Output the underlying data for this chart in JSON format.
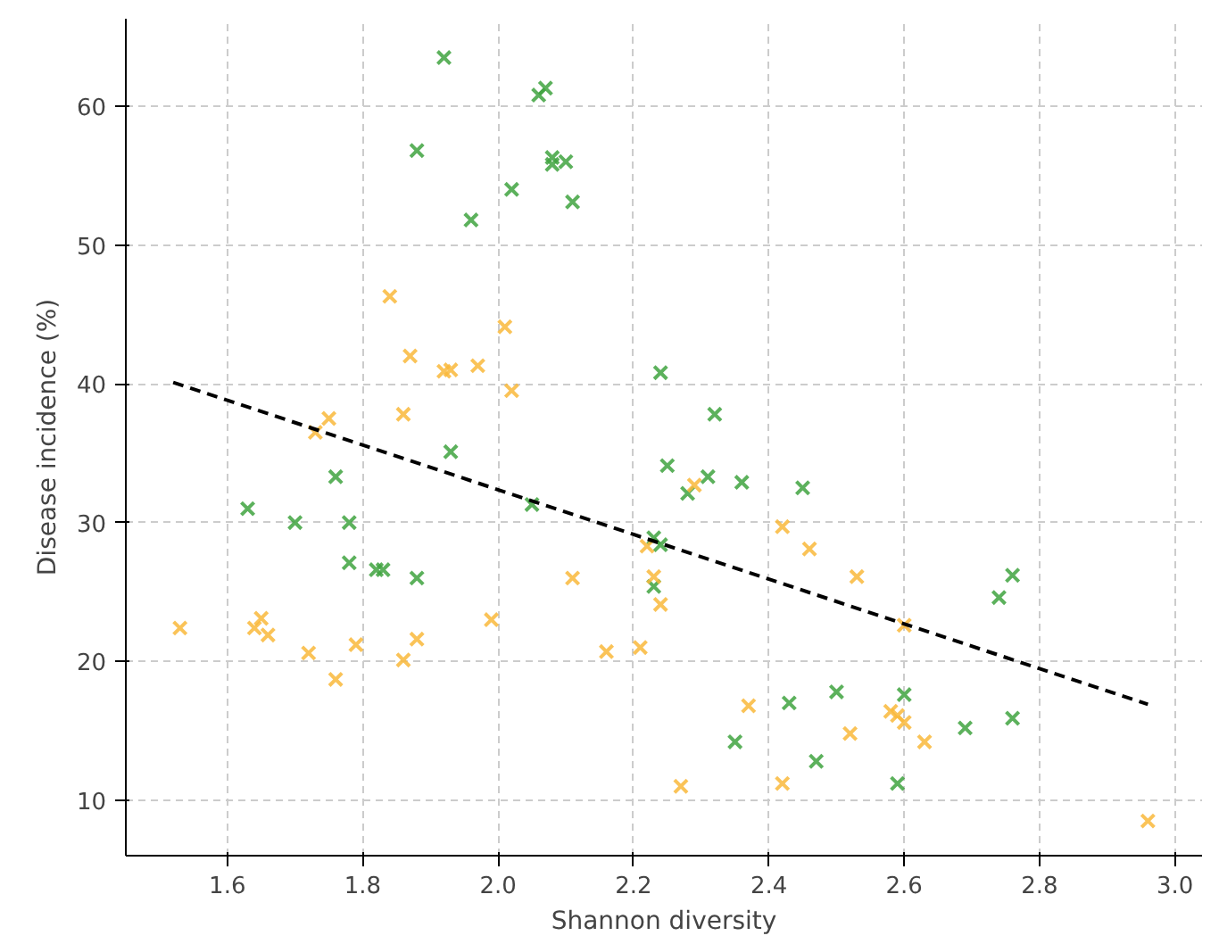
{
  "chart_data": {
    "type": "scatter",
    "xlabel": "Shannon diversity",
    "ylabel": "Disease incidence (%)",
    "xlim": [
      1.45,
      3.04
    ],
    "ylim": [
      6,
      66.3
    ],
    "xticks": [
      {
        "value": 1.6,
        "label": "1.6"
      },
      {
        "value": 1.8,
        "label": "1.8"
      },
      {
        "value": 2.0,
        "label": "2.0"
      },
      {
        "value": 2.2,
        "label": "2.2"
      },
      {
        "value": 2.4,
        "label": "2.4"
      },
      {
        "value": 2.6,
        "label": "2.6"
      },
      {
        "value": 2.8,
        "label": "2.8"
      },
      {
        "value": 3.0,
        "label": "3.0"
      }
    ],
    "yticks": [
      10,
      20,
      30,
      40,
      50,
      60
    ],
    "grid": true,
    "series": [
      {
        "marker": "cross",
        "color": "#3fa33f",
        "x": [
          1.92,
          2.06,
          2.07,
          1.88,
          2.08,
          2.08,
          2.1,
          2.11,
          2.02,
          1.96,
          2.24,
          1.93,
          2.32,
          2.25,
          2.31,
          2.28,
          2.36,
          2.45,
          1.76,
          1.63,
          1.7,
          1.78,
          2.05,
          1.78,
          1.82,
          1.83,
          1.88,
          2.23,
          2.24,
          2.23,
          2.74,
          2.76,
          2.6,
          2.5,
          2.43,
          2.35,
          2.47,
          2.59,
          2.69,
          2.76
        ],
        "values": [
          63.5,
          60.8,
          61.3,
          56.8,
          56.3,
          55.8,
          56.0,
          53.1,
          54.0,
          51.8,
          40.8,
          35.1,
          37.8,
          34.1,
          33.3,
          32.1,
          32.9,
          32.5,
          33.3,
          31.0,
          30.0,
          30.0,
          31.3,
          27.1,
          26.6,
          26.6,
          26.0,
          28.9,
          28.4,
          25.4,
          24.6,
          26.2,
          17.6,
          17.8,
          17.0,
          14.2,
          12.8,
          11.2,
          15.2,
          15.9
        ]
      },
      {
        "marker": "cross",
        "color": "#f9b93b",
        "x": [
          1.84,
          2.01,
          1.87,
          1.92,
          1.93,
          1.97,
          2.02,
          1.75,
          1.73,
          1.86,
          1.53,
          1.64,
          1.65,
          1.66,
          1.72,
          1.76,
          1.79,
          1.86,
          1.88,
          1.99,
          2.11,
          2.16,
          2.21,
          2.22,
          2.23,
          2.24,
          2.29,
          2.42,
          2.46,
          2.53,
          2.6,
          2.37,
          2.42,
          2.27,
          2.52,
          2.58,
          2.59,
          2.6,
          2.63,
          2.96
        ],
        "values": [
          46.3,
          44.1,
          42.0,
          40.9,
          41.0,
          41.3,
          39.5,
          37.5,
          36.5,
          37.8,
          22.4,
          22.4,
          23.1,
          21.9,
          20.6,
          18.7,
          21.2,
          20.1,
          21.6,
          23.0,
          26.0,
          20.7,
          21.0,
          28.3,
          26.1,
          24.1,
          32.7,
          29.7,
          28.1,
          26.1,
          22.6,
          16.8,
          11.2,
          11.0,
          14.8,
          16.4,
          16.1,
          15.6,
          14.2,
          8.5
        ]
      },
      {
        "type": "line",
        "marker": "none",
        "line_style": "dashed",
        "color": "#000000",
        "x": [
          1.52,
          2.96
        ],
        "values": [
          40.1,
          16.9
        ]
      }
    ]
  }
}
